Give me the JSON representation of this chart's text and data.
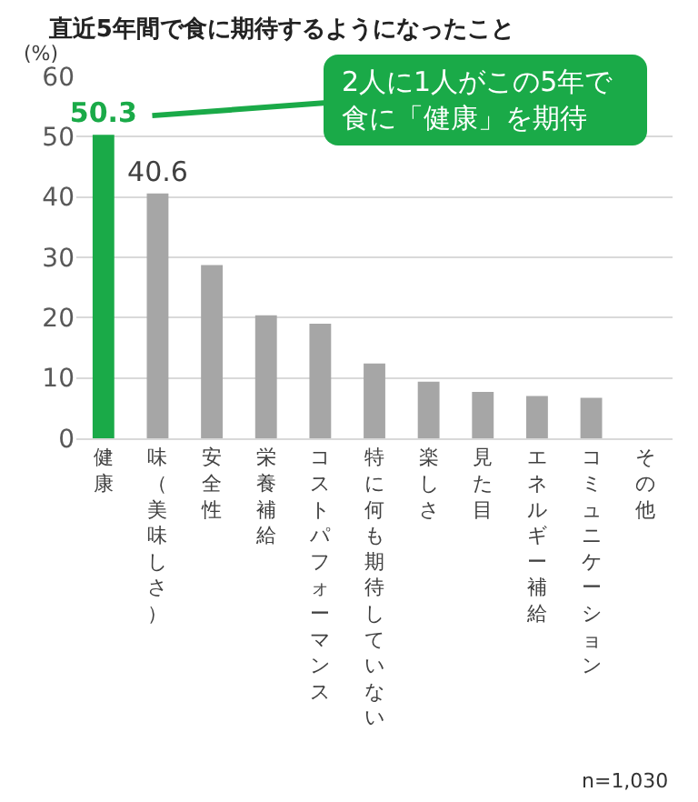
{
  "chart_data": {
    "type": "bar",
    "title": "直近5年間で食に期待するようになったこと",
    "ylabel": "(%)",
    "categories": [
      "健康",
      "味（美味しさ）",
      "安全性",
      "栄養補給",
      "コストパフォーマンス",
      "特に何も期待していない",
      "楽しさ",
      "見た目",
      "エネルギー補給",
      "コミュニケーション",
      "その他"
    ],
    "values": [
      50.3,
      40.6,
      28.7,
      20.4,
      19.0,
      12.4,
      9.4,
      7.7,
      7.0,
      6.7,
      0
    ],
    "colors": [
      "#1aaa48",
      "#a6a6a6",
      "#a6a6a6",
      "#a6a6a6",
      "#a6a6a6",
      "#a6a6a6",
      "#a6a6a6",
      "#a6a6a6",
      "#a6a6a6",
      "#a6a6a6",
      "#a6a6a6"
    ],
    "value_labels": [
      "50.3",
      "40.6",
      null,
      null,
      null,
      null,
      null,
      null,
      null,
      null,
      null
    ],
    "ylim": [
      0,
      60
    ],
    "yticks": [
      0,
      10,
      20,
      30,
      40,
      50,
      60
    ],
    "grid": "y",
    "annotations": [
      "2人に1人がこの5年で食に「健康」を期待",
      "n=1,030"
    ]
  }
}
